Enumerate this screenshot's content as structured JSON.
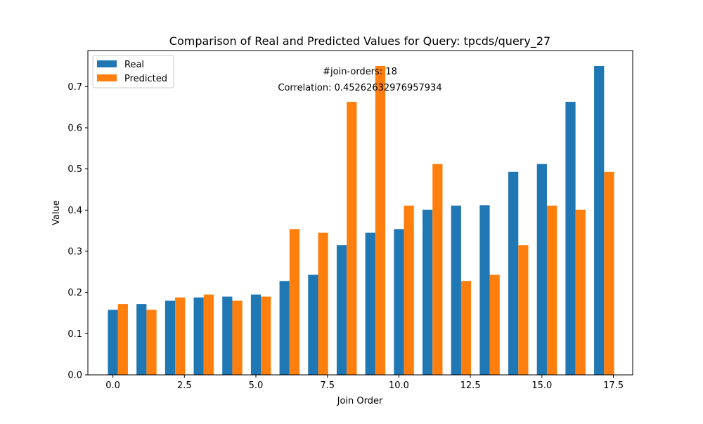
{
  "chart_data": {
    "type": "bar",
    "title": "Comparison of Real and Predicted Values for Query: tpcds/query_27",
    "xlabel": "Join Order",
    "ylabel": "Value",
    "xlim": [
      -0.875,
      18.175
    ],
    "ylim": [
      0,
      0.7875
    ],
    "x_ticks": [
      0.0,
      2.5,
      5.0,
      7.5,
      10.0,
      12.5,
      15.0,
      17.5
    ],
    "x_tick_labels": [
      "0.0",
      "2.5",
      "5.0",
      "7.5",
      "10.0",
      "12.5",
      "15.0",
      "17.5"
    ],
    "y_ticks": [
      0.0,
      0.1,
      0.2,
      0.3,
      0.4,
      0.5,
      0.6,
      0.7
    ],
    "y_tick_labels": [
      "0.0",
      "0.1",
      "0.2",
      "0.3",
      "0.4",
      "0.5",
      "0.6",
      "0.7"
    ],
    "bar_width": 0.35,
    "categories": [
      0,
      1,
      2,
      3,
      4,
      5,
      6,
      7,
      8,
      9,
      10,
      11,
      12,
      13,
      14,
      15,
      16,
      17
    ],
    "series": [
      {
        "name": "Real",
        "color": "#1f77b4",
        "values": [
          0.158,
          0.172,
          0.18,
          0.188,
          0.19,
          0.195,
          0.228,
          0.243,
          0.315,
          0.345,
          0.354,
          0.401,
          0.411,
          0.412,
          0.493,
          0.512,
          0.663,
          0.75
        ]
      },
      {
        "name": "Predicted",
        "color": "#ff7f0e",
        "values": [
          0.172,
          0.158,
          0.188,
          0.195,
          0.18,
          0.19,
          0.354,
          0.345,
          0.663,
          0.75,
          0.411,
          0.512,
          0.228,
          0.243,
          0.315,
          0.411,
          0.401,
          0.493
        ]
      }
    ],
    "annotations": [
      "#join-orders: 18",
      "Correlation: 0.45262632976957934"
    ],
    "legend": {
      "location": "upper-left",
      "entries": [
        "Real",
        "Predicted"
      ]
    },
    "grid": false
  }
}
